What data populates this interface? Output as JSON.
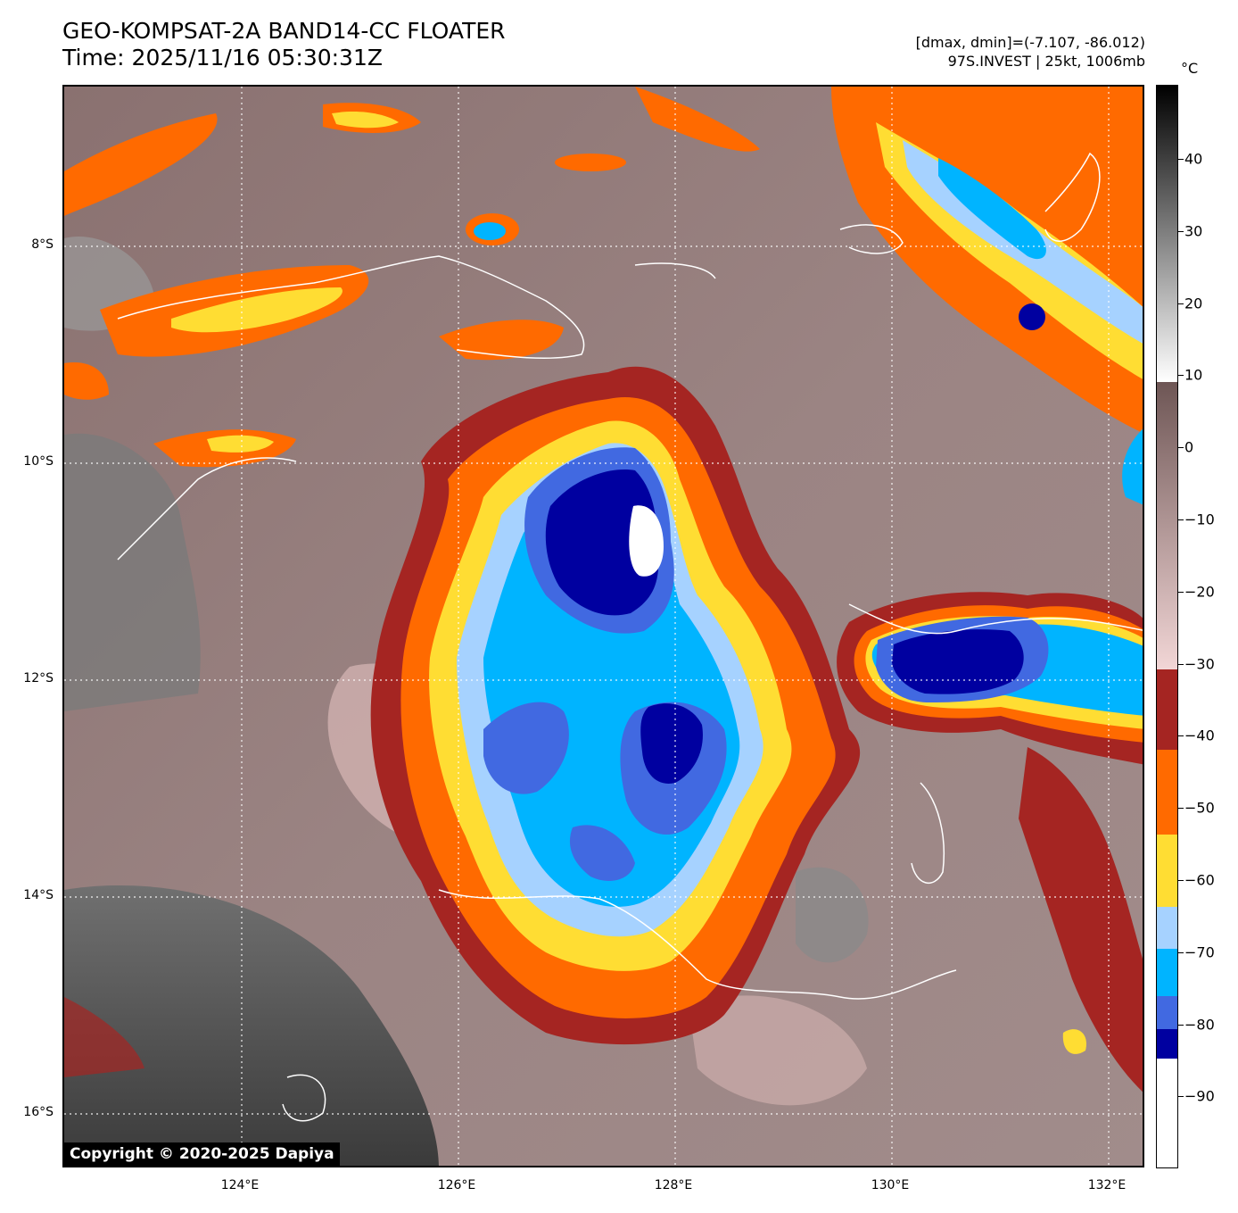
{
  "title": {
    "line1": "GEO-KOMPSAT-2A BAND14-CC FLOATER",
    "line2": "Time: 2025/11/16 05:30:31Z"
  },
  "info": {
    "line1": "[dmax, dmin]=(-7.107, -86.012)",
    "line2": "97S.INVEST | 25kt, 1006mb"
  },
  "map": {
    "lat_labels": [
      "8°S",
      "10°S",
      "12°S",
      "14°S",
      "16°S"
    ],
    "lon_labels": [
      "124°E",
      "126°E",
      "128°E",
      "130°E",
      "132°E"
    ],
    "copyright": "Copyright © 2020-2025 Dapiya"
  },
  "colorbar": {
    "unit": "°C",
    "ticks": [
      "40",
      "30",
      "20",
      "10",
      "0",
      "−10",
      "−20",
      "−30",
      "−40",
      "−50",
      "−60",
      "−70",
      "−80",
      "−90"
    ],
    "colors": {
      "warm_top": "#000000",
      "warm_mid": "#808080",
      "warm_low": "#ffffff",
      "brown": "#6e5655",
      "pink": "#f2d6d6",
      "red": "#a52522",
      "orange": "#ff6a00",
      "yellow": "#ffdd33",
      "light_blue": "#a6d2ff",
      "cyan": "#00b4ff",
      "blue": "#4169e1",
      "navy": "#0000a0",
      "white": "#ffffff"
    }
  }
}
